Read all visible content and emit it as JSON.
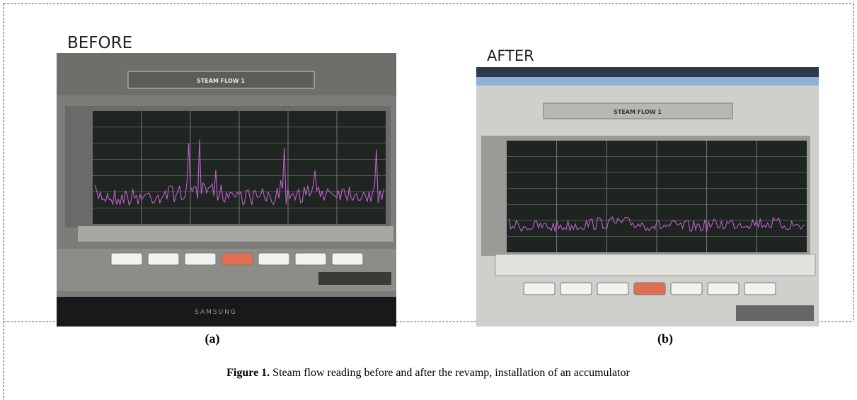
{
  "panels": [
    {
      "heading": "BEFORE",
      "screen_title": "STEAM FLOW 1",
      "brand": "SAMSUNG",
      "label": "(a)"
    },
    {
      "heading": "AFTER",
      "screen_title": "STEAM FLOW 1",
      "label": "(b)"
    }
  ],
  "caption": {
    "number": "Figure 1.",
    "text": "Steam flow reading before and after the revamp, installation of an accumulator"
  }
}
